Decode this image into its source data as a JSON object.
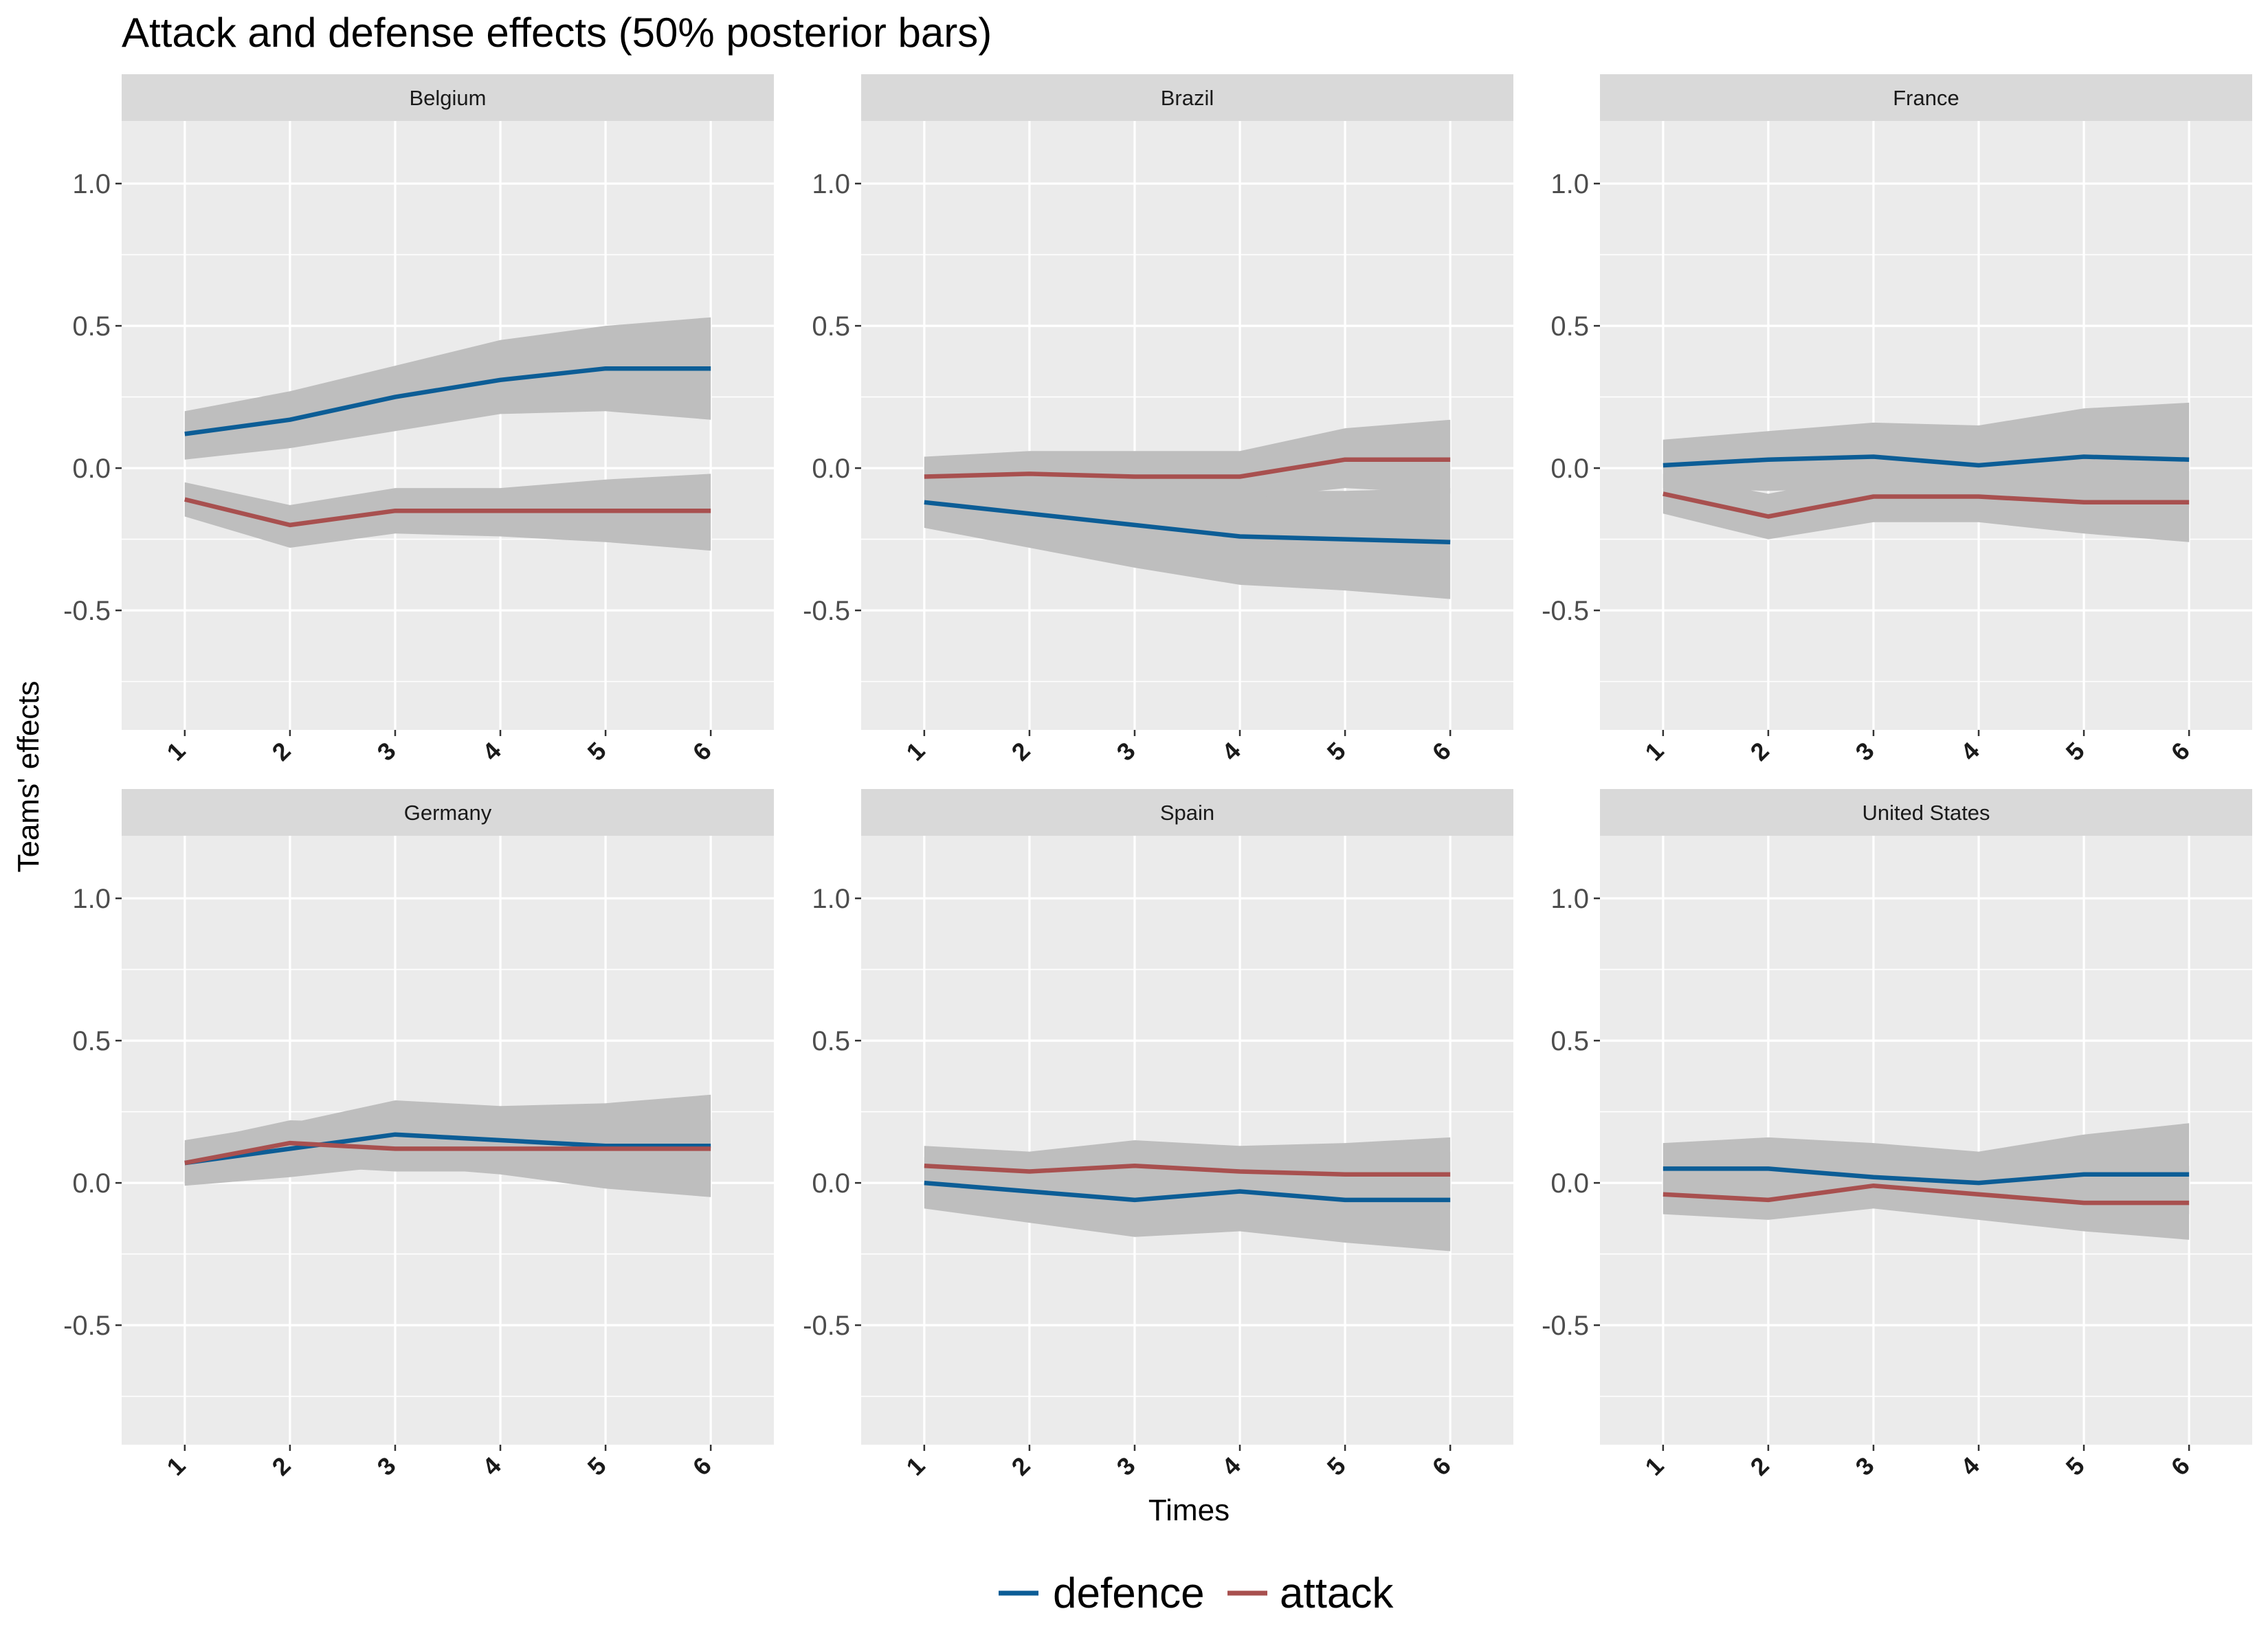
{
  "chart_data": {
    "type": "line",
    "title": "Attack and defense effects (50% posterior bars)",
    "xlabel": "Times",
    "ylabel": "Teams' effects",
    "x": [
      1,
      2,
      3,
      4,
      5,
      6
    ],
    "xticks": [
      "1",
      "2",
      "3",
      "4",
      "5",
      "6"
    ],
    "ylim": [
      -0.92,
      1.22
    ],
    "yticks": [
      1.0,
      0.5,
      0.0,
      -0.5
    ],
    "ytick_labels": [
      "1.0",
      "0.5",
      "0.0",
      "-0.5"
    ],
    "grid": true,
    "legend_position": "bottom",
    "colors": {
      "defence": "#0c5d96",
      "attack": "#a8504f",
      "band": "#bebebe",
      "panel_bg": "#ebebeb",
      "strip_bg": "#d9d9d9",
      "grid": "#ffffff"
    },
    "legend": [
      {
        "key": "defence",
        "label": "defence"
      },
      {
        "key": "attack",
        "label": "attack"
      }
    ],
    "panels": [
      {
        "name": "Belgium",
        "defence": {
          "values": [
            0.12,
            0.17,
            0.25,
            0.31,
            0.35,
            0.35
          ],
          "lower": [
            0.03,
            0.07,
            0.13,
            0.19,
            0.2,
            0.17
          ],
          "upper": [
            0.2,
            0.27,
            0.36,
            0.45,
            0.5,
            0.53
          ]
        },
        "attack": {
          "values": [
            -0.11,
            -0.2,
            -0.15,
            -0.15,
            -0.15,
            -0.15
          ],
          "lower": [
            -0.17,
            -0.28,
            -0.23,
            -0.24,
            -0.26,
            -0.29
          ],
          "upper": [
            -0.05,
            -0.13,
            -0.07,
            -0.07,
            -0.04,
            -0.02
          ]
        }
      },
      {
        "name": "Brazil",
        "defence": {
          "values": [
            -0.12,
            -0.16,
            -0.2,
            -0.24,
            -0.25,
            -0.26
          ],
          "lower": [
            -0.21,
            -0.28,
            -0.35,
            -0.41,
            -0.43,
            -0.46
          ],
          "upper": [
            -0.03,
            -0.04,
            -0.06,
            -0.08,
            -0.08,
            -0.07
          ]
        },
        "attack": {
          "values": [
            -0.03,
            -0.02,
            -0.03,
            -0.03,
            0.03,
            0.03
          ],
          "lower": [
            -0.1,
            -0.09,
            -0.1,
            -0.11,
            -0.07,
            -0.09
          ],
          "upper": [
            0.04,
            0.06,
            0.06,
            0.06,
            0.14,
            0.17
          ]
        }
      },
      {
        "name": "France",
        "defence": {
          "values": [
            0.01,
            0.03,
            0.04,
            0.01,
            0.04,
            0.03
          ],
          "lower": [
            -0.07,
            -0.08,
            -0.07,
            -0.09,
            -0.11,
            -0.14
          ],
          "upper": [
            0.1,
            0.13,
            0.16,
            0.15,
            0.21,
            0.23
          ]
        },
        "attack": {
          "values": [
            -0.09,
            -0.17,
            -0.1,
            -0.1,
            -0.12,
            -0.12
          ],
          "lower": [
            -0.16,
            -0.25,
            -0.19,
            -0.19,
            -0.23,
            -0.26
          ],
          "upper": [
            -0.02,
            -0.09,
            -0.02,
            -0.02,
            -0.02,
            -0.01
          ]
        }
      },
      {
        "name": "Germany",
        "defence": {
          "values": [
            0.07,
            0.12,
            0.17,
            0.15,
            0.13,
            0.13
          ],
          "lower": [
            -0.01,
            0.02,
            0.06,
            0.03,
            -0.02,
            -0.05
          ],
          "upper": [
            0.15,
            0.21,
            0.29,
            0.27,
            0.28,
            0.31
          ]
        },
        "attack": {
          "values": [
            0.07,
            0.14,
            0.12,
            0.12,
            0.12,
            0.12
          ],
          "lower": [
            0.0,
            0.06,
            0.04,
            0.04,
            0.02,
            0.01
          ],
          "upper": [
            0.14,
            0.22,
            0.21,
            0.21,
            0.21,
            0.22
          ]
        }
      },
      {
        "name": "Spain",
        "defence": {
          "values": [
            0.0,
            -0.03,
            -0.06,
            -0.03,
            -0.06,
            -0.06
          ],
          "lower": [
            -0.09,
            -0.14,
            -0.19,
            -0.17,
            -0.21,
            -0.24
          ],
          "upper": [
            0.09,
            0.08,
            0.07,
            0.1,
            0.09,
            0.11
          ]
        },
        "attack": {
          "values": [
            0.06,
            0.04,
            0.06,
            0.04,
            0.03,
            0.03
          ],
          "lower": [
            -0.01,
            -0.04,
            -0.02,
            -0.05,
            -0.07,
            -0.09
          ],
          "upper": [
            0.13,
            0.11,
            0.15,
            0.13,
            0.14,
            0.16
          ]
        }
      },
      {
        "name": "United States",
        "defence": {
          "values": [
            0.05,
            0.05,
            0.02,
            0.0,
            0.03,
            0.03
          ],
          "lower": [
            -0.04,
            -0.05,
            -0.09,
            -0.11,
            -0.1,
            -0.11
          ],
          "upper": [
            0.14,
            0.16,
            0.14,
            0.11,
            0.17,
            0.21
          ]
        },
        "attack": {
          "values": [
            -0.04,
            -0.06,
            -0.01,
            -0.04,
            -0.07,
            -0.07
          ],
          "lower": [
            -0.11,
            -0.13,
            -0.09,
            -0.13,
            -0.17,
            -0.2
          ],
          "upper": [
            0.03,
            0.01,
            0.07,
            0.05,
            0.04,
            0.06
          ]
        }
      }
    ]
  }
}
